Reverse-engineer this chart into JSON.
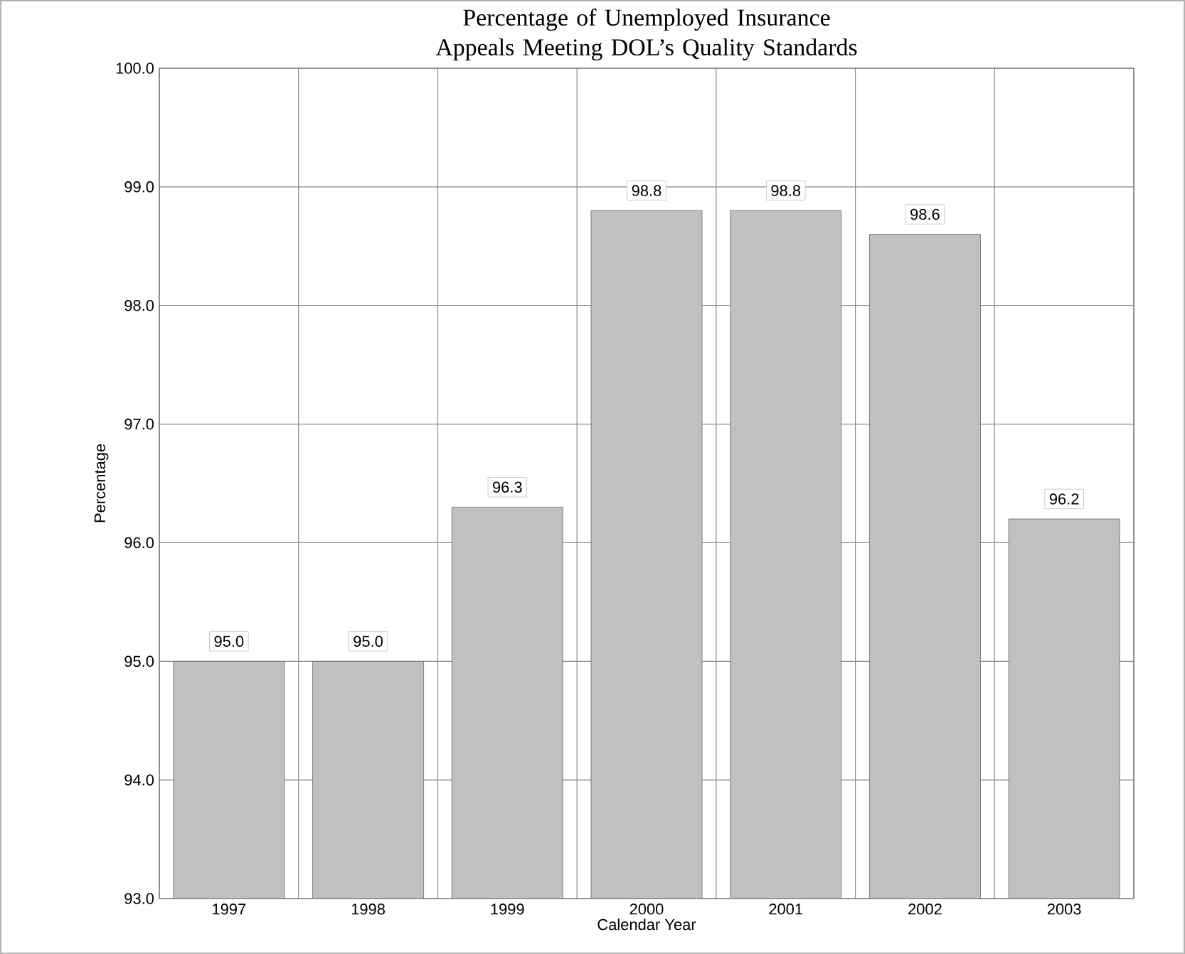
{
  "chart_data": {
    "type": "bar",
    "title": "Percentage of Unemployed Insurance Appeals Meeting DOL’s Quality Standards",
    "xlabel": "Calendar Year",
    "ylabel": "Percentage",
    "categories": [
      "1997",
      "1998",
      "1999",
      "2000",
      "2001",
      "2002",
      "2003"
    ],
    "values": [
      95.0,
      95.0,
      96.3,
      98.8,
      98.8,
      98.6,
      96.2
    ],
    "color": "#c0c0c0",
    "ylim": [
      93,
      100
    ],
    "yticks": [
      {
        "value": 93,
        "label": "93.0"
      },
      {
        "value": 94,
        "label": "94.0"
      },
      {
        "value": 95,
        "label": "95.0"
      },
      {
        "value": 96,
        "label": "96.0"
      },
      {
        "value": 97,
        "label": "97.0"
      },
      {
        "value": 98,
        "label": "98.0"
      },
      {
        "value": 99,
        "label": "99.0"
      },
      {
        "value": 100,
        "label": "100.0"
      }
    ],
    "value_labels": [
      "95.0",
      "95.0",
      "96.3",
      "98.8",
      "98.8",
      "98.6",
      "96.2"
    ],
    "grid": true
  }
}
